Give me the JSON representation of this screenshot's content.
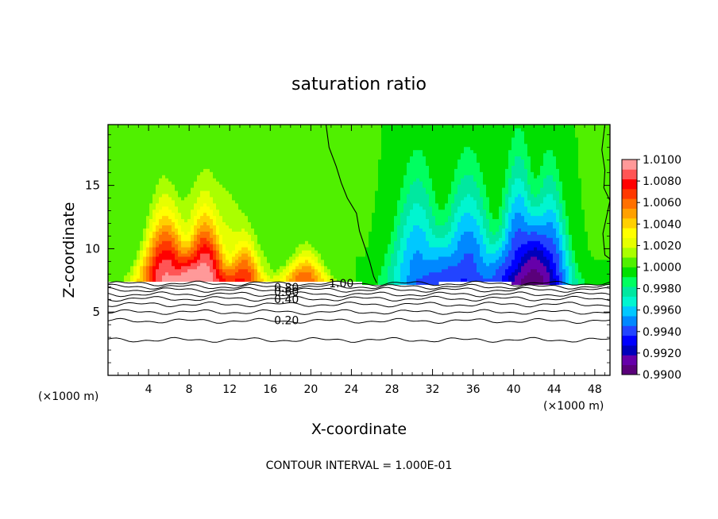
{
  "chart_data": {
    "type": "heatmap",
    "title": "saturation ratio",
    "xlabel": "X-coordinate",
    "ylabel": "Z-coordinate",
    "x_unit_left": "(×1000 m)",
    "x_unit_right": "(×1000 m)",
    "footer": "CONTOUR INTERVAL = 1.000E-01",
    "xlim": [
      0,
      49.5
    ],
    "ylim": [
      0,
      19.8
    ],
    "x_ticks": [
      4,
      8,
      12,
      16,
      20,
      24,
      28,
      32,
      36,
      40,
      44,
      48
    ],
    "x_tick_labels": [
      "4",
      "8",
      "12",
      "16",
      "20",
      "24",
      "28",
      "32",
      "36",
      "40",
      "44",
      "48"
    ],
    "y_ticks": [
      5,
      10,
      15
    ],
    "y_tick_labels": [
      "5",
      "10",
      "15"
    ],
    "colorbar": {
      "min": 0.99,
      "max": 1.01,
      "tick_values": [
        1.01,
        1.008,
        1.006,
        1.004,
        1.002,
        1.0,
        0.998,
        0.996,
        0.994,
        0.992,
        0.99
      ],
      "tick_labels": [
        "1.0100",
        "1.0080",
        "1.0060",
        "1.0040",
        "1.0020",
        "1.0000",
        "0.9980",
        "0.9960",
        "0.9940",
        "0.9920",
        "0.9900"
      ],
      "colors": [
        "#5a007a",
        "#6600aa",
        "#0000bb",
        "#0000ff",
        "#2244ff",
        "#0088ff",
        "#00c8ff",
        "#00f5d0",
        "#00e8a0",
        "#00ff60",
        "#00e000",
        "#50f000",
        "#aaff00",
        "#e6ff00",
        "#ffff00",
        "#ffd000",
        "#ffa000",
        "#ff7000",
        "#ff3800",
        "#ff0000",
        "#ff5555",
        "#ff9999"
      ]
    },
    "contour_lines": [
      {
        "label": "1.00",
        "level": 1.0
      },
      {
        "label": "0.80",
        "level": 0.8
      },
      {
        "label": "0.60",
        "level": 0.6
      },
      {
        "label": "0.40",
        "level": 0.4
      },
      {
        "label": "0.20",
        "level": 0.2
      }
    ],
    "contour_line_z": [
      7.25,
      7.0,
      6.75,
      6.4,
      6.05,
      5.6,
      5.0,
      4.3,
      2.8
    ],
    "surface_boundary": [
      [
        0,
        7.3
      ],
      [
        5,
        7.4
      ],
      [
        10,
        7.35
      ],
      [
        15,
        7.5
      ],
      [
        20,
        7.45
      ],
      [
        25,
        7.3
      ],
      [
        30,
        7.25
      ],
      [
        35,
        7.35
      ],
      [
        40,
        7.3
      ],
      [
        45,
        7.2
      ],
      [
        49.5,
        7.2
      ]
    ],
    "lobes": [
      {
        "x": 5.5,
        "peak": 11.8,
        "width": 2.6,
        "value": 1.0075
      },
      {
        "x": 9.5,
        "peak": 11.0,
        "width": 2.2,
        "value": 1.007
      },
      {
        "x": 10.0,
        "peak": 13.2,
        "width": 6.0,
        "value": 1.003
      },
      {
        "x": 13.5,
        "peak": 9.6,
        "width": 1.8,
        "value": 1.005
      },
      {
        "x": 19.5,
        "peak": 9.2,
        "width": 2.4,
        "value": 1.006
      },
      {
        "x": 30.5,
        "peak": 13.6,
        "width": 3.0,
        "value": 0.995
      },
      {
        "x": 35.5,
        "peak": 13.4,
        "width": 3.2,
        "value": 0.994
      },
      {
        "x": 40.5,
        "peak": 14.0,
        "width": 2.4,
        "value": 0.993
      },
      {
        "x": 43.5,
        "peak": 13.0,
        "width": 2.4,
        "value": 0.993
      }
    ],
    "saturated_lines": [
      [
        [
          21.5,
          19.8
        ],
        [
          21.8,
          18.0
        ],
        [
          22.5,
          16.5
        ],
        [
          23.0,
          15.2
        ],
        [
          23.6,
          14.0
        ],
        [
          24.5,
          12.8
        ],
        [
          24.8,
          11.4
        ],
        [
          25.3,
          10.2
        ],
        [
          25.8,
          9.0
        ],
        [
          26.2,
          7.8
        ],
        [
          26.5,
          7.3
        ]
      ],
      [
        [
          49.0,
          19.8
        ],
        [
          48.7,
          17.8
        ],
        [
          49.0,
          16.2
        ],
        [
          48.9,
          14.8
        ],
        [
          49.5,
          13.8
        ],
        [
          48.8,
          11.2
        ],
        [
          49.0,
          9.5
        ],
        [
          49.5,
          9.2
        ]
      ]
    ]
  }
}
